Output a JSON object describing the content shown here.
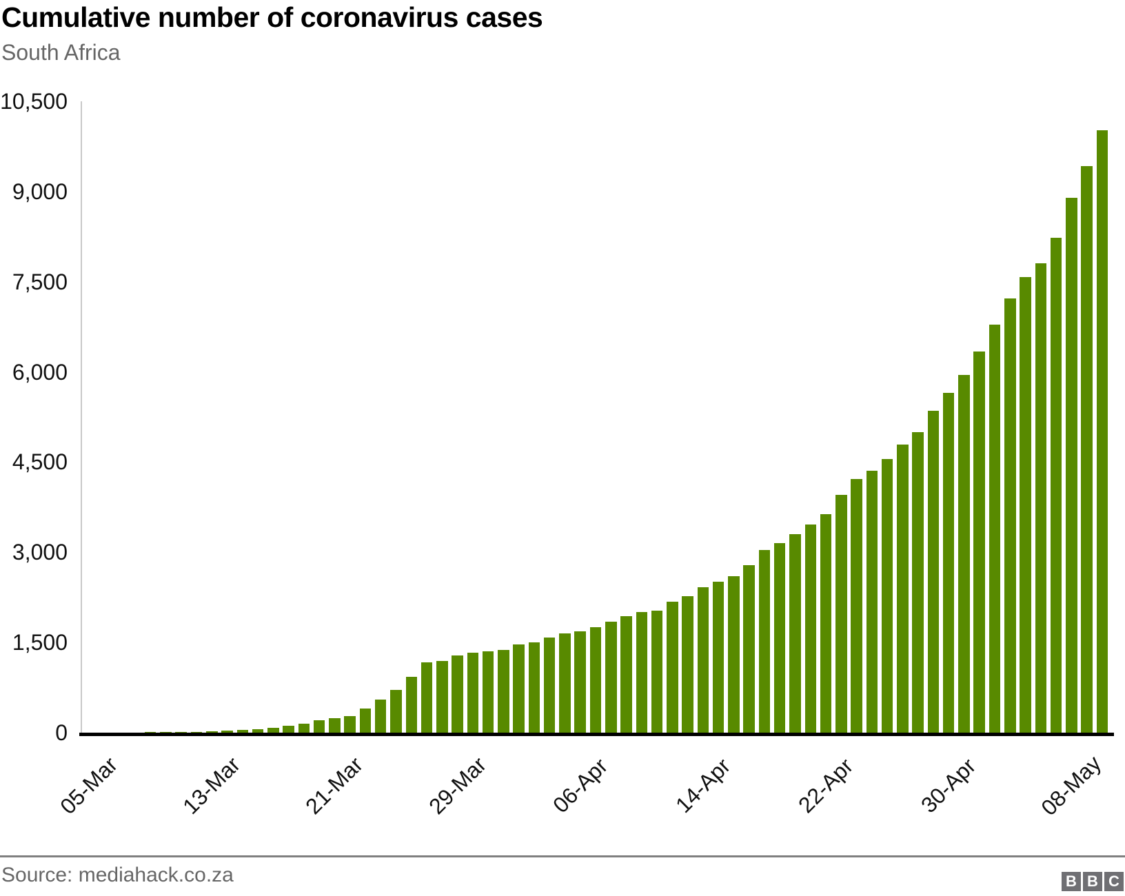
{
  "header": {
    "title": "Cumulative number of coronavirus cases",
    "subtitle": "South Africa"
  },
  "footer": {
    "source": "Source: mediahack.co.za",
    "logo_letters": [
      "B",
      "B",
      "C"
    ]
  },
  "chart_data": {
    "type": "bar",
    "title": "Cumulative number of coronavirus cases",
    "subtitle": "South Africa",
    "xlabel": "",
    "ylabel": "",
    "x": [
      "05-Mar",
      "06-Mar",
      "07-Mar",
      "08-Mar",
      "09-Mar",
      "10-Mar",
      "11-Mar",
      "12-Mar",
      "13-Mar",
      "14-Mar",
      "15-Mar",
      "16-Mar",
      "17-Mar",
      "18-Mar",
      "19-Mar",
      "20-Mar",
      "21-Mar",
      "22-Mar",
      "23-Mar",
      "24-Mar",
      "25-Mar",
      "26-Mar",
      "27-Mar",
      "28-Mar",
      "29-Mar",
      "30-Mar",
      "31-Mar",
      "01-Apr",
      "02-Apr",
      "03-Apr",
      "04-Apr",
      "05-Apr",
      "06-Apr",
      "07-Apr",
      "08-Apr",
      "09-Apr",
      "10-Apr",
      "11-Apr",
      "12-Apr",
      "13-Apr",
      "14-Apr",
      "15-Apr",
      "16-Apr",
      "17-Apr",
      "18-Apr",
      "19-Apr",
      "20-Apr",
      "21-Apr",
      "22-Apr",
      "23-Apr",
      "24-Apr",
      "25-Apr",
      "26-Apr",
      "27-Apr",
      "28-Apr",
      "29-Apr",
      "30-Apr",
      "01-May",
      "02-May",
      "03-May",
      "04-May",
      "05-May",
      "06-May",
      "07-May",
      "08-May",
      "09-May",
      "10-May"
    ],
    "values": [
      1,
      1,
      2,
      3,
      7,
      7,
      13,
      16,
      24,
      38,
      51,
      62,
      85,
      116,
      150,
      202,
      240,
      274,
      402,
      554,
      709,
      927,
      1170,
      1187,
      1280,
      1326,
      1353,
      1380,
      1462,
      1505,
      1585,
      1655,
      1686,
      1749,
      1845,
      1934,
      2003,
      2028,
      2173,
      2272,
      2415,
      2506,
      2605,
      2783,
      3034,
      3158,
      3300,
      3465,
      3635,
      3953,
      4220,
      4361,
      4546,
      4793,
      4996,
      5350,
      5647,
      5951,
      6336,
      6783,
      7220,
      7572,
      7808,
      8232,
      8895,
      9420,
      10015
    ],
    "x_tick_indices": [
      0,
      8,
      16,
      24,
      32,
      40,
      48,
      56,
      64
    ],
    "x_tick_labels": [
      "05-Mar",
      "13-Mar",
      "21-Mar",
      "29-Mar",
      "06-Apr",
      "14-Apr",
      "22-Apr",
      "30-Apr",
      "08-May"
    ],
    "y_ticks": [
      0,
      1500,
      3000,
      4500,
      6000,
      7500,
      9000,
      10500
    ],
    "y_tick_labels": [
      "0",
      "1,500",
      "3,000",
      "4,500",
      "6,000",
      "7,500",
      "9,000",
      "10,500"
    ],
    "ylim": [
      0,
      10500
    ],
    "grid": false,
    "legend": false,
    "bar_color": "#588a00",
    "axis_line_color": "#c8c8c8",
    "baseline_color": "#000000",
    "divider_color": "#7f7f7f",
    "text_color": "#111111",
    "muted_text_color": "#666666",
    "logo_color": "#6f6f73"
  }
}
